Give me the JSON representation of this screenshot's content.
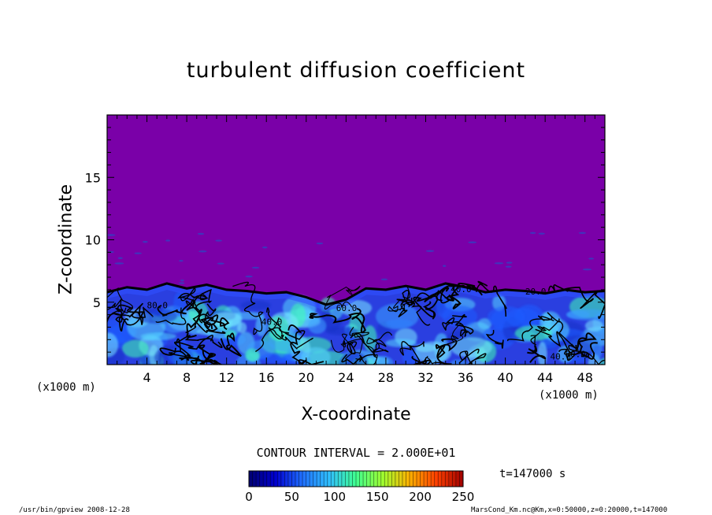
{
  "chart_data": {
    "type": "heatmap",
    "title": "turbulent diffusion coefficient",
    "xlabel": "X-coordinate",
    "ylabel": "Z-coordinate",
    "x_unit": "(x1000 m)",
    "y_unit": "(x1000 m)",
    "xlim": [
      0,
      50
    ],
    "ylim": [
      0,
      20
    ],
    "x_ticks": [
      4,
      8,
      12,
      16,
      20,
      24,
      28,
      32,
      36,
      40,
      44,
      48
    ],
    "y_ticks": [
      5,
      10,
      15
    ],
    "colorbar": {
      "range": [
        0,
        250
      ],
      "ticks": [
        0,
        50,
        100,
        150,
        200,
        250
      ],
      "colors": [
        "#000070",
        "#0000d0",
        "#2070ff",
        "#30c0ff",
        "#40ff90",
        "#a0ff30",
        "#ffb000",
        "#ff4000",
        "#a00000"
      ]
    },
    "background_color": "#7a00a8",
    "contour_interval": "CONTOUR INTERVAL = 2.000E+01",
    "time_label": "t=147000 s",
    "mixed_layer_top_km": [
      {
        "x": 0,
        "z": 5.8
      },
      {
        "x": 2,
        "z": 6.2
      },
      {
        "x": 4,
        "z": 6.0
      },
      {
        "x": 6,
        "z": 6.5
      },
      {
        "x": 8,
        "z": 6.1
      },
      {
        "x": 10,
        "z": 6.4
      },
      {
        "x": 12,
        "z": 6.0
      },
      {
        "x": 14,
        "z": 5.9
      },
      {
        "x": 16,
        "z": 5.7
      },
      {
        "x": 18,
        "z": 5.8
      },
      {
        "x": 20,
        "z": 5.4
      },
      {
        "x": 22,
        "z": 4.8
      },
      {
        "x": 24,
        "z": 5.2
      },
      {
        "x": 26,
        "z": 6.1
      },
      {
        "x": 28,
        "z": 6.0
      },
      {
        "x": 30,
        "z": 6.3
      },
      {
        "x": 32,
        "z": 6.0
      },
      {
        "x": 34,
        "z": 6.5
      },
      {
        "x": 36,
        "z": 6.2
      },
      {
        "x": 38,
        "z": 5.8
      },
      {
        "x": 40,
        "z": 6.0
      },
      {
        "x": 42,
        "z": 5.9
      },
      {
        "x": 44,
        "z": 5.7
      },
      {
        "x": 46,
        "z": 6.0
      },
      {
        "x": 48,
        "z": 5.8
      },
      {
        "x": 50,
        "z": 5.9
      }
    ],
    "contour_labels": [
      "80.0",
      "40.0",
      "60.0",
      "40.0",
      "20.0",
      "40.0",
      "80.0"
    ]
  },
  "footer": {
    "left": "/usr/bin/gpview  2008-12-28",
    "right": "MarsCond_Km.nc@Km,x=0:50000,z=0:20000,t=147000"
  }
}
